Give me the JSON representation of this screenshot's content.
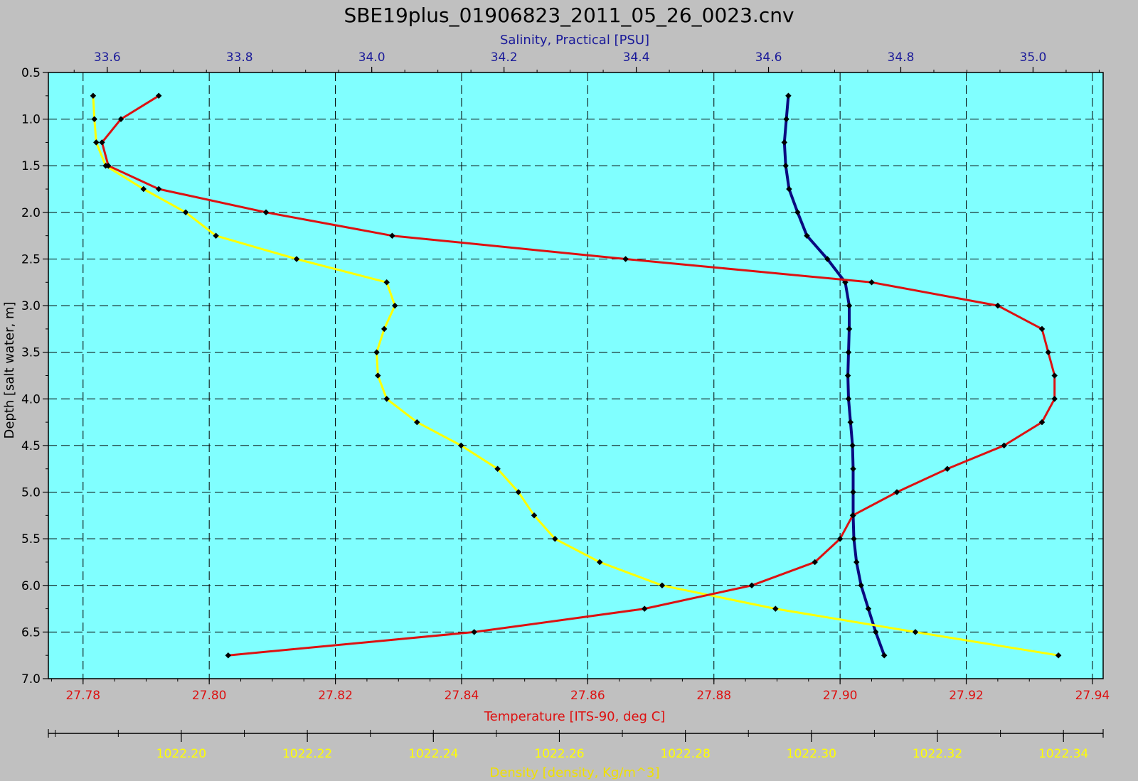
{
  "chart_data": {
    "type": "line",
    "title": "SBE19plus_01906823_2011_05_26_0023.cnv",
    "colors": {
      "background": "#c0c0c0",
      "plot_area": "#80ffff",
      "temperature": "#dd1111",
      "salinity": "#0a0a80",
      "density": "#ffff00",
      "marker": "#000000"
    },
    "grid": true,
    "depth_axis": {
      "label": "Depth [salt water, m]",
      "range": [
        0.5,
        7.0
      ],
      "reversed": true,
      "ticks": [
        "0.5",
        "1.0",
        "1.5",
        "2.0",
        "2.5",
        "3.0",
        "3.5",
        "4.0",
        "4.5",
        "5.0",
        "5.5",
        "6.0",
        "6.5",
        "7.0"
      ]
    },
    "salinity_axis": {
      "label": "Salinity, Practical [PSU]",
      "position": "top",
      "range": [
        33.511,
        35.106
      ],
      "ticks": [
        "33.6",
        "33.8",
        "34.0",
        "34.2",
        "34.4",
        "34.6",
        "34.8",
        "35.0"
      ]
    },
    "temperature_axis": {
      "label": "Temperature [ITS-90, deg C]",
      "position": "bottom",
      "range": [
        27.7745,
        27.9417
      ],
      "ticks": [
        "27.78",
        "27.80",
        "27.82",
        "27.84",
        "27.86",
        "27.88",
        "27.90",
        "27.92",
        "27.94"
      ]
    },
    "density_axis": {
      "label": "Density [density, Kg/m^3]",
      "position": "bottom-2",
      "range": [
        1022.1789,
        1022.3463
      ],
      "ticks": [
        "1022.20",
        "1022.22",
        "1022.24",
        "1022.26",
        "1022.28",
        "1022.30",
        "1022.32",
        "1022.34"
      ]
    },
    "series": [
      {
        "name": "Temperature",
        "axis": "temperature",
        "depth": [
          0.75,
          1.0,
          1.25,
          1.5,
          1.75,
          2.0,
          2.25,
          2.5,
          2.75,
          3.0,
          3.25,
          3.5,
          3.75,
          4.0,
          4.25,
          4.5,
          4.75,
          5.0,
          5.25,
          5.5,
          5.75,
          6.0,
          6.25,
          6.5,
          6.75
        ],
        "values": [
          27.792,
          27.786,
          27.783,
          27.784,
          27.792,
          27.809,
          27.829,
          27.866,
          27.905,
          27.925,
          27.932,
          27.933,
          27.934,
          27.934,
          27.932,
          27.926,
          27.917,
          27.909,
          27.902,
          27.9,
          27.896,
          27.886,
          27.869,
          27.842,
          27.803
        ]
      },
      {
        "name": "Salinity",
        "axis": "salinity",
        "depth": [
          0.75,
          1.0,
          1.25,
          1.5,
          1.75,
          2.0,
          2.25,
          2.5,
          2.75,
          3.0,
          3.25,
          3.5,
          3.75,
          4.0,
          4.25,
          4.5,
          4.75,
          5.0,
          5.25,
          5.5,
          5.75,
          6.0,
          6.25,
          6.5,
          6.75
        ],
        "values": [
          34.63,
          34.627,
          34.624,
          34.626,
          34.631,
          34.644,
          34.658,
          34.689,
          34.716,
          34.722,
          34.722,
          34.721,
          34.72,
          34.721,
          34.724,
          34.727,
          34.728,
          34.728,
          34.728,
          34.729,
          34.733,
          34.74,
          34.751,
          34.762,
          34.775
        ]
      },
      {
        "name": "Density",
        "axis": "density",
        "depth": [
          0.75,
          1.0,
          1.25,
          1.5,
          1.75,
          2.0,
          2.25,
          2.5,
          2.75,
          3.0,
          3.25,
          3.5,
          3.75,
          4.0,
          4.25,
          4.5,
          4.75,
          5.0,
          5.25,
          5.5,
          5.75,
          6.0,
          6.25,
          6.5,
          6.75
        ],
        "values": [
          1022.186,
          1022.1862,
          1022.1865,
          1022.188,
          1022.194,
          1022.2007,
          1022.2055,
          1022.2183,
          1022.2326,
          1022.2339,
          1022.2322,
          1022.231,
          1022.2312,
          1022.2326,
          1022.2374,
          1022.2444,
          1022.2502,
          1022.2535,
          1022.256,
          1022.2593,
          1022.2664,
          1022.2763,
          1022.2943,
          1022.3165,
          1022.3392
        ]
      }
    ]
  }
}
